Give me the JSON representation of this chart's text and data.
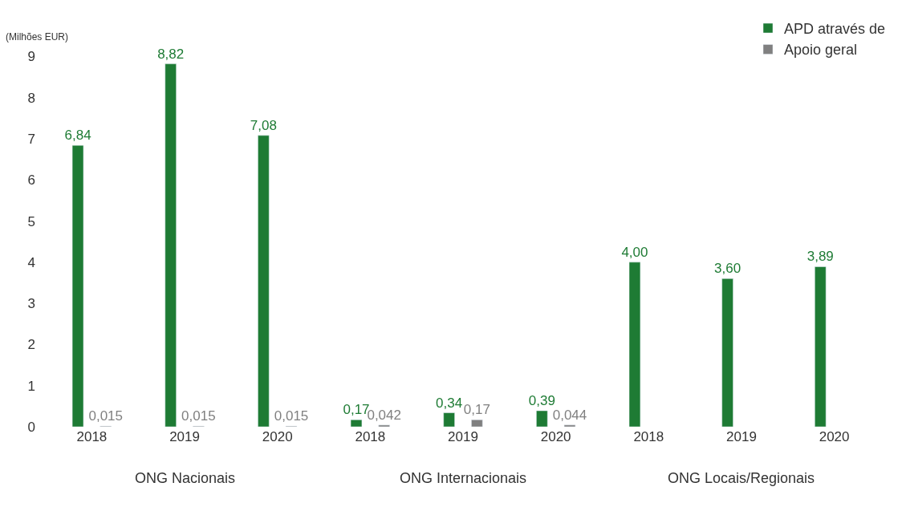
{
  "chart_data": {
    "type": "bar",
    "ylabel": "(Milhões EUR)",
    "categories": [
      "2018",
      "2019",
      "2020",
      "2018",
      "2019",
      "2020",
      "2018",
      "2019",
      "2020"
    ],
    "series": [
      {
        "name": "APD através de",
        "color": "#1e7b34",
        "values": [
          6.84,
          8.82,
          7.08,
          0.17,
          0.34,
          0.39,
          4.0,
          3.6,
          3.89
        ],
        "value_labels": [
          "6,84",
          "8,82",
          "7,08",
          "0,17",
          "0,34",
          "0,39",
          "4,00",
          "3,60",
          "3,89"
        ]
      },
      {
        "name": "Apoio geral",
        "color": "#808080",
        "values": [
          0.015,
          0.015,
          0.015,
          0.042,
          0.17,
          0.044,
          null,
          null,
          null
        ],
        "value_labels": [
          "0,015",
          "0,015",
          "0,015",
          "0,042",
          "0,17",
          "0,044",
          null,
          null,
          null
        ]
      }
    ],
    "annotations": [
      "ONG Nacionais",
      "ONG Internacionais",
      "ONG Locais/Regionais"
    ],
    "ylim": [
      0,
      9.3
    ],
    "yticks": [
      0,
      1,
      2,
      3,
      4,
      5,
      6,
      7,
      8,
      9
    ],
    "legend": "top right"
  }
}
